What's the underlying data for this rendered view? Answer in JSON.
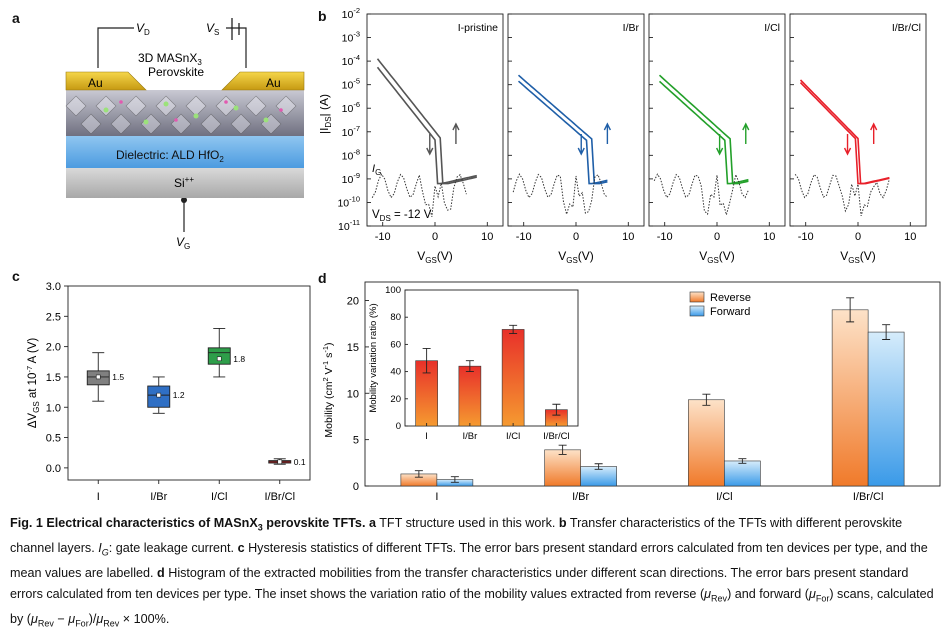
{
  "panel_labels": {
    "a": "a",
    "b": "b",
    "c": "c",
    "d": "d"
  },
  "panel_a": {
    "vd": "V",
    "vd_sub": "D",
    "vs": "V",
    "vs_sub": "S",
    "vg": "V",
    "vg_sub": "G",
    "material_line1": "3D MASnX",
    "material_sub": "3",
    "material_line2": "Perovskite",
    "contact_left": "Au",
    "contact_right": "Au",
    "dielectric": "Dielectric: ALD HfO",
    "dielectric_sub": "2",
    "substrate": "Si",
    "substrate_sup": "++"
  },
  "panel_b": {
    "ylabel": "|I",
    "ylabel_sub": "DS",
    "ylabel_end": "| (A)",
    "xlabel": "V",
    "xlabel_sub": "GS",
    "xlabel_end": "(V)",
    "ig_label": "I",
    "ig_sub": "G",
    "vds_label": "V",
    "vds_sub": "DS",
    "vds_value": " = -12 V",
    "yticks": [
      "10",
      "10",
      "10",
      "10",
      "10",
      "10",
      "10",
      "10",
      "10",
      "10"
    ],
    "yexp": [
      "-2",
      "-3",
      "-4",
      "-5",
      "-6",
      "-7",
      "-8",
      "-9",
      "-10",
      "-11"
    ],
    "xticks": [
      "-10",
      "0",
      "10"
    ],
    "colors": {
      "pristine": "#555555",
      "Br": "#1f5fa8",
      "Cl": "#23a02a",
      "BrCl": "#e8202a"
    }
  },
  "chart_data": [
    {
      "panel": "b",
      "type": "line",
      "yscale": "log",
      "ylim": [
        1e-11,
        0.01
      ],
      "xlim": [
        -13,
        13
      ],
      "subplots": [
        {
          "title": "I-pristine",
          "color": "#555555"
        },
        {
          "title": "I/Br",
          "color": "#1f5fa8"
        },
        {
          "title": "I/Cl",
          "color": "#23a02a"
        },
        {
          "title": "I/Br/Cl",
          "color": "#e8202a"
        }
      ]
    },
    {
      "panel": "c",
      "type": "box",
      "ylabel": "ΔV",
      "ylim": [
        -0.2,
        3.0
      ],
      "yticks": [
        "0.0",
        "0.5",
        "1.0",
        "1.5",
        "2.0",
        "2.5",
        "3.0"
      ],
      "categories": [
        "I",
        "I/Br",
        "I/Cl",
        "I/Br/Cl"
      ],
      "means": [
        1.5,
        1.2,
        1.8,
        0.1
      ],
      "mean_labels": [
        "1.5",
        "1.2",
        "1.8",
        "0.1"
      ],
      "boxes": [
        {
          "min": 1.1,
          "q1": 1.37,
          "median": 1.5,
          "q3": 1.6,
          "max": 1.9,
          "color": "#808080"
        },
        {
          "min": 0.9,
          "q1": 1.0,
          "median": 1.2,
          "q3": 1.35,
          "max": 1.5,
          "color": "#2f6fc4"
        },
        {
          "min": 1.5,
          "q1": 1.71,
          "median": 1.9,
          "q3": 1.98,
          "max": 2.3,
          "color": "#2e9e4a"
        },
        {
          "min": 0.06,
          "q1": 0.08,
          "median": 0.1,
          "q3": 0.12,
          "max": 0.15,
          "color": "#e02020"
        }
      ]
    },
    {
      "panel": "d",
      "type": "bar",
      "ylabel": "Mobility (cm",
      "ylim": [
        0,
        22
      ],
      "yticks": [
        "0",
        "5",
        "10",
        "15",
        "20"
      ],
      "categories": [
        "I",
        "I/Br",
        "I/Cl",
        "I/Br/Cl"
      ],
      "series": [
        {
          "name": "Reverse",
          "values": [
            1.3,
            3.9,
            9.3,
            19.0
          ],
          "errors": [
            0.35,
            0.5,
            0.6,
            1.3
          ]
        },
        {
          "name": "Forward",
          "values": [
            0.7,
            2.1,
            2.7,
            16.6
          ],
          "errors": [
            0.3,
            0.3,
            0.25,
            0.8
          ]
        }
      ],
      "inset": {
        "ylabel": "Mobility variation ratio (%)",
        "ylim": [
          0,
          100
        ],
        "yticks": [
          "0",
          "20",
          "40",
          "60",
          "80",
          "100"
        ],
        "categories": [
          "I",
          "I/Br",
          "I/Cl",
          "I/Br/Cl"
        ],
        "values": [
          48,
          44,
          71,
          12
        ],
        "errors": [
          9,
          4,
          3,
          4
        ]
      }
    }
  ],
  "caption": {
    "title": "Fig. 1 Electrical characteristics of MASnX",
    "title_sub": "3",
    "title_end": " perovskite TFTs.",
    "a_label": "a",
    "a_text": " TFT structure used in this work. ",
    "b_label": "b",
    "b_text": " Transfer characteristics of the TFTs with different perovskite channel layers. ",
    "ig": "I",
    "ig_sub": "G",
    "ig_text": ": gate leakage current. ",
    "c_label": "c",
    "c_text": " Hysteresis statistics of different TFTs. The error bars present standard errors calculated from ten devices per type, and the mean values are labelled. ",
    "d_label": "d",
    "d_text": " Histogram of the extracted mobilities from the transfer characteristics under different scan directions. The error bars present standard errors calculated from ten devices per type. The inset shows the variation ratio of the mobility values extracted from reverse (",
    "mu_rev": "μ",
    "rev_sub": "Rev",
    "mid1": ") and forward (",
    "mu_for": "μ",
    "for_sub": "For",
    "mid2": ") scans, calculated by (",
    "formula_a": "μ",
    "fa_sub": "Rev",
    "formula_minus": " − ",
    "formula_b": "μ",
    "fb_sub": "For",
    "formula_c": ")/",
    "formula_d": "μ",
    "fd_sub": "Rev",
    "formula_end": " × 100%."
  }
}
